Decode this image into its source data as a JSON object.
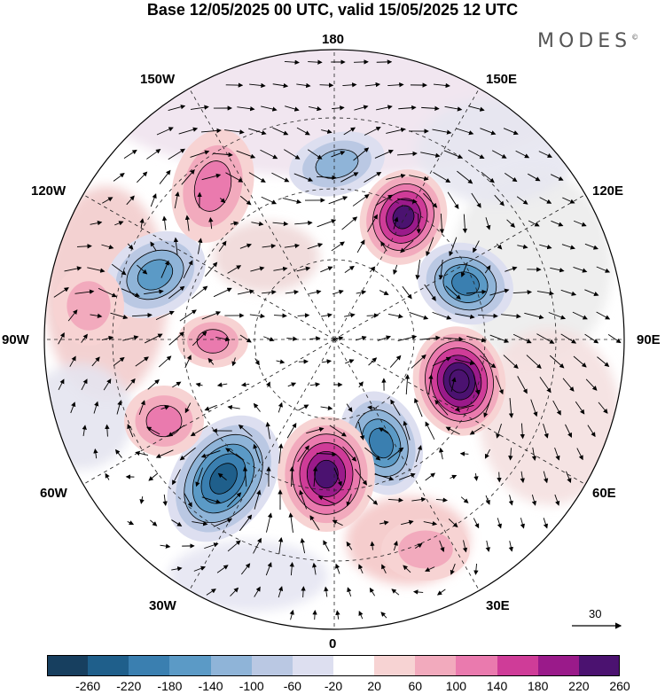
{
  "header": {
    "title": "Base 12/05/2025 00 UTC, valid 15/05/2025 12 UTC",
    "brand": "MODES",
    "brand_mark": "©"
  },
  "map": {
    "longitude_labels": {
      "top": "180",
      "bottom": "0",
      "left": "90W",
      "right": "90E",
      "upper_left_1": "150W",
      "upper_left_2": "120W",
      "upper_right_1": "150E",
      "upper_right_2": "120E",
      "lower_left_1": "60W",
      "lower_left_2": "30W",
      "lower_right_1": "60E",
      "lower_right_2": "30E"
    },
    "reference_vector": "30",
    "colors": {
      "neg_extreme": "#16405f",
      "pos_extreme": "#4b1270",
      "contour": "#000000"
    }
  },
  "colorbar": {
    "tick_labels": [
      "-260",
      "-220",
      "-180",
      "-140",
      "-100",
      "-60",
      "-20",
      "20",
      "60",
      "100",
      "140",
      "180",
      "220",
      "260"
    ],
    "colors": [
      "#173f5f",
      "#1f5f8b",
      "#3a7fb0",
      "#5b9ac6",
      "#8fb4d8",
      "#bac8e3",
      "#dddff0",
      "#ffffff",
      "#f7d3d3",
      "#f2aabd",
      "#ea7aae",
      "#cf3c98",
      "#9a1a8a",
      "#4b1270"
    ]
  }
}
